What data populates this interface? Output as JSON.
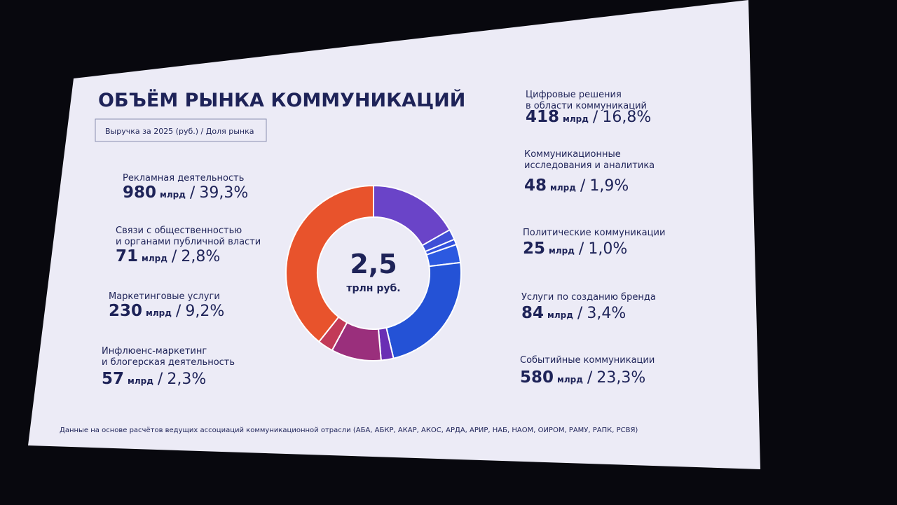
{
  "chart_data": {
    "type": "donut",
    "title": "ОБЪЁМ РЫНКА КОММУНИКАЦИЙ",
    "legend_left": "Выручка за 2025 (руб.)",
    "legend_sep": "/",
    "legend_right": "Доля рынка",
    "center_value": "2,5",
    "center_unit": "трлн руб.",
    "categories": [
      [
        "Цифровые решения",
        "в области коммуникаций"
      ],
      [
        "Коммуникационные",
        "исследования и аналитика"
      ],
      [
        "Политические коммуникации"
      ],
      [
        "Услуги по созданию бренда"
      ],
      [
        "Событийные коммуникации"
      ],
      [
        "Инфлюенс-маркетинг",
        "и блогерская деятельность"
      ],
      [
        "Маркетинговые услуги"
      ],
      [
        "Связи с общественностью",
        "и органами публичной власти"
      ],
      [
        "Рекламная деятельность"
      ]
    ],
    "values": [
      418,
      48,
      25,
      84,
      580,
      57,
      230,
      71,
      980
    ],
    "unit": "млрд",
    "separator": "/",
    "shares": [
      16.8,
      1.9,
      1.0,
      3.4,
      23.3,
      2.3,
      9.2,
      2.8,
      39.3
    ],
    "share_labels": [
      "16,8%",
      "1,9%",
      "1,0%",
      "3,4%",
      "23,3%",
      "2,3%",
      "9,2%",
      "2,8%",
      "39,3%"
    ],
    "colors": [
      "#6a44c8",
      "#3f4fd6",
      "#3352de",
      "#2c59e0",
      "#2452d6",
      "#6a2fb4",
      "#9a2f7c",
      "#c23a58",
      "#e8532c"
    ],
    "footnote": "Данные на основе расчётов ведущих ассоциаций коммуникационной отрасли (АБА, АБКР, АКАР, АКОС, АРДА, АРИР, НАБ, НАОМ, ОИРОМ, РАМУ, РАПК, РСВЯ)"
  }
}
